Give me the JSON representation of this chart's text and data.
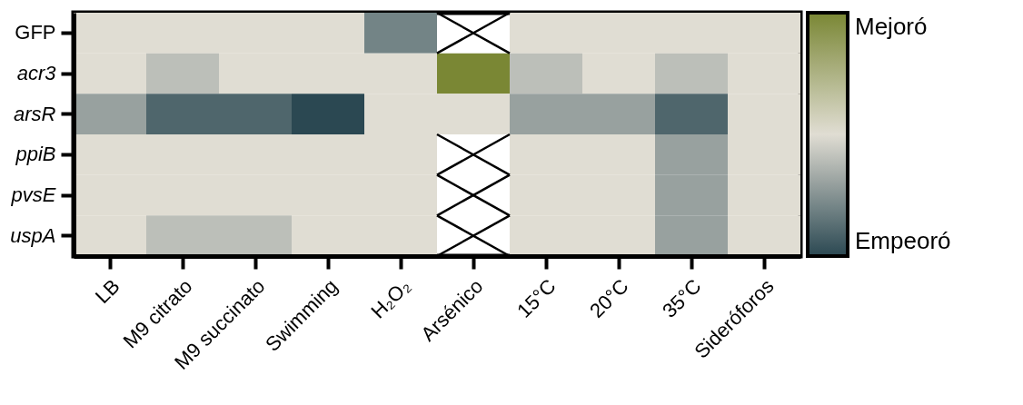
{
  "chart_data": {
    "type": "heatmap",
    "categories": [
      "LB",
      "M9 citrato",
      "M9 succinato",
      "Swimming",
      "H₂O₂",
      "Arsénico",
      "15°C",
      "20°C",
      "35°C",
      "Sideróforos"
    ],
    "y_categories": [
      "GFP",
      "acr3",
      "arsR",
      "ppiB",
      "pvsE",
      "uspA"
    ],
    "cells": [
      [
        0,
        0,
        0,
        0,
        -1.5,
        null,
        0,
        0,
        0,
        0
      ],
      [
        0,
        -0.5,
        0,
        0,
        0,
        2.5,
        -0.5,
        0,
        -0.5,
        0
      ],
      [
        -1,
        -2,
        -2,
        -2.5,
        0,
        0,
        -1,
        -1,
        -2,
        0
      ],
      [
        0,
        0,
        0,
        0,
        0,
        null,
        0,
        0,
        -1,
        0
      ],
      [
        0,
        0,
        0,
        0,
        0,
        null,
        0,
        0,
        -1,
        0
      ],
      [
        0,
        -0.5,
        -0.5,
        0,
        0,
        null,
        0,
        0,
        -1,
        0
      ]
    ],
    "clim": [
      -2.5,
      2.5
    ],
    "cticks": [
      {
        "value": 2.2,
        "label": "Mejoró"
      },
      {
        "value": -2.2,
        "label": "Empeoró"
      }
    ]
  }
}
